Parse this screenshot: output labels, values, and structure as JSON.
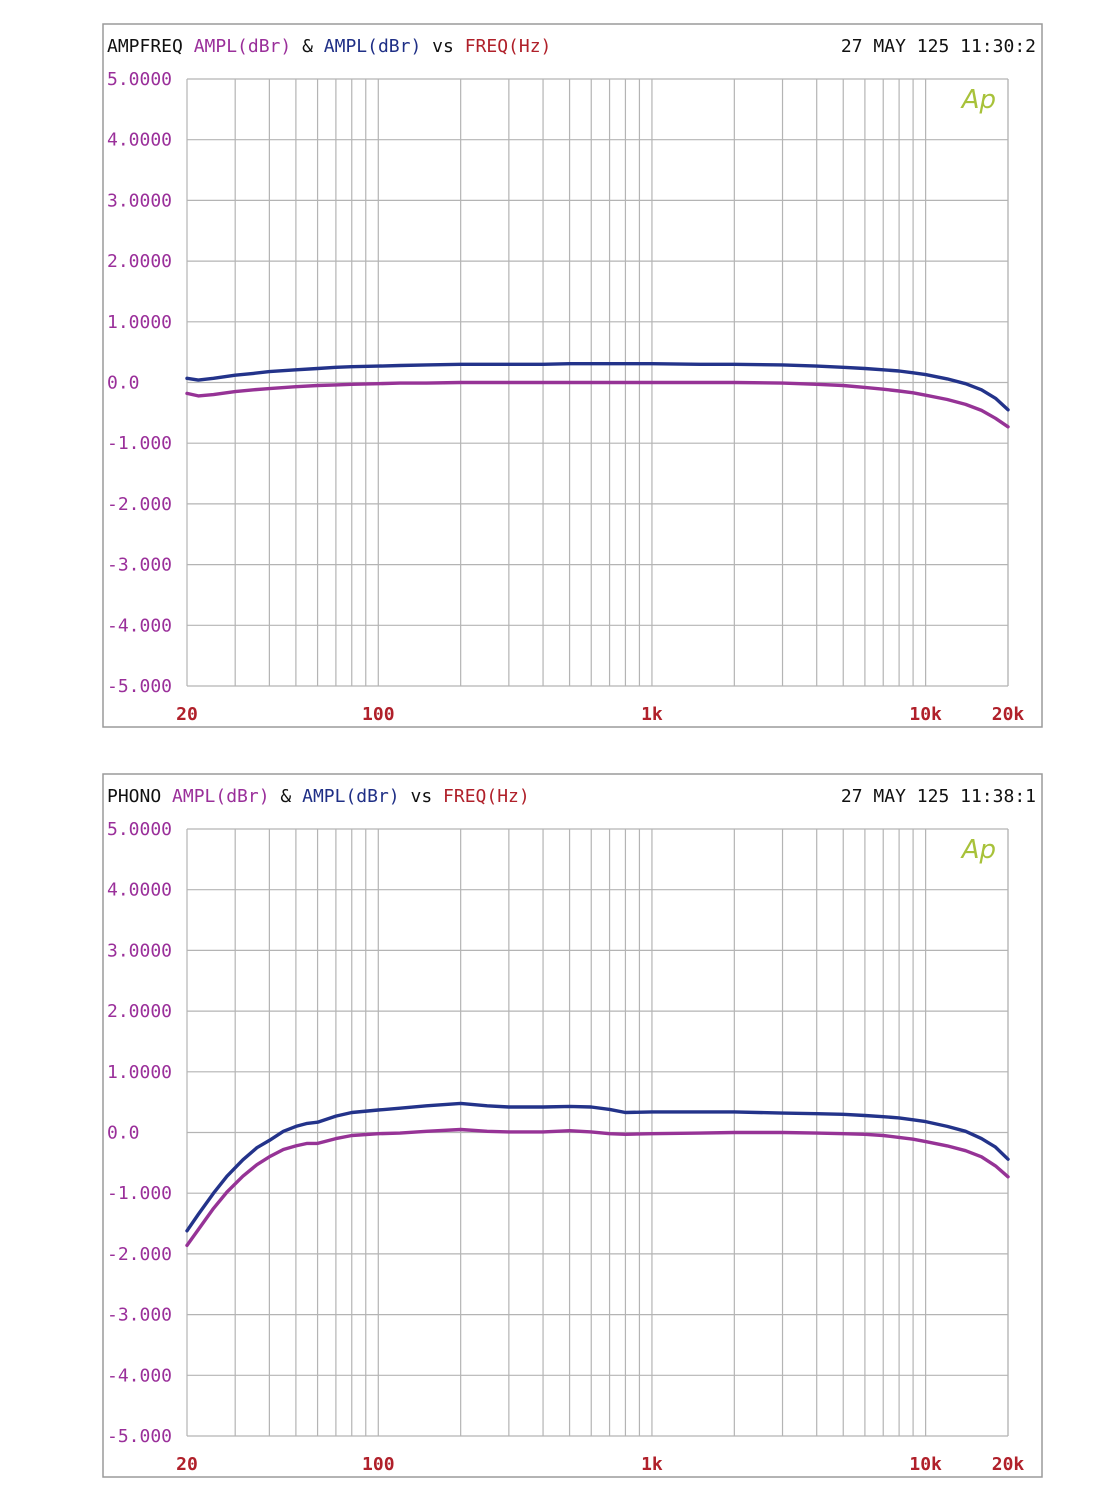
{
  "colors": {
    "black": "#111111",
    "purple": "#9a2f9a",
    "navy": "#1f2f86",
    "red": "#b0202a",
    "grid": "#b4b4b4",
    "logo": "#a8c23a",
    "series1": "#23338a",
    "series2": "#963396"
  },
  "chart_data": [
    {
      "type": "line",
      "title_parts": [
        "AMPFREQ",
        "AMPL(dBr)",
        "&",
        "AMPL(dBr)",
        "vs",
        "FREQ(Hz)"
      ],
      "timestamp": "27 MAY 125 11:30:2",
      "logo": "Ap",
      "x_scale": "log",
      "xlim": [
        20,
        20000
      ],
      "ylim": [
        -5,
        5
      ],
      "grid": true,
      "y_ticks": [
        {
          "v": 5,
          "label": "5.0000"
        },
        {
          "v": 4,
          "label": "4.0000"
        },
        {
          "v": 3,
          "label": "3.0000"
        },
        {
          "v": 2,
          "label": "2.0000"
        },
        {
          "v": 1,
          "label": "1.0000"
        },
        {
          "v": 0,
          "label": "0.0"
        },
        {
          "v": -1,
          "label": "-1.000"
        },
        {
          "v": -2,
          "label": "-2.000"
        },
        {
          "v": -3,
          "label": "-3.000"
        },
        {
          "v": -4,
          "label": "-4.000"
        },
        {
          "v": -5,
          "label": "-5.000"
        }
      ],
      "x_ticks": [
        {
          "v": 20,
          "label": "20"
        },
        {
          "v": 100,
          "label": "100"
        },
        {
          "v": 1000,
          "label": "1k"
        },
        {
          "v": 10000,
          "label": "10k"
        },
        {
          "v": 20000,
          "label": "20k"
        }
      ],
      "series": [
        {
          "x": [
            20,
            22,
            25,
            30,
            35,
            40,
            50,
            60,
            70,
            80,
            100,
            120,
            150,
            200,
            300,
            400,
            500,
            700,
            1000,
            1500,
            2000,
            3000,
            4000,
            5000,
            6000,
            7000,
            8000,
            9000,
            10000,
            12000,
            14000,
            16000,
            18000,
            20000
          ],
          "y": [
            0.07,
            0.04,
            0.07,
            0.12,
            0.15,
            0.18,
            0.21,
            0.23,
            0.25,
            0.26,
            0.27,
            0.28,
            0.29,
            0.3,
            0.3,
            0.3,
            0.31,
            0.31,
            0.31,
            0.3,
            0.3,
            0.29,
            0.27,
            0.25,
            0.23,
            0.21,
            0.19,
            0.16,
            0.13,
            0.06,
            -0.02,
            -0.12,
            -0.26,
            -0.45
          ]
        },
        {
          "x": [
            20,
            22,
            25,
            30,
            35,
            40,
            50,
            60,
            70,
            80,
            100,
            120,
            150,
            200,
            300,
            500,
            700,
            1000,
            1500,
            2000,
            3000,
            4000,
            5000,
            6000,
            7000,
            8000,
            9000,
            10000,
            12000,
            14000,
            16000,
            18000,
            20000
          ],
          "y": [
            -0.18,
            -0.22,
            -0.2,
            -0.15,
            -0.12,
            -0.1,
            -0.07,
            -0.05,
            -0.04,
            -0.03,
            -0.02,
            -0.01,
            -0.01,
            0.0,
            0.0,
            0.0,
            0.0,
            0.0,
            0.0,
            0.0,
            -0.01,
            -0.03,
            -0.05,
            -0.08,
            -0.11,
            -0.14,
            -0.17,
            -0.21,
            -0.28,
            -0.36,
            -0.46,
            -0.59,
            -0.73
          ]
        }
      ]
    },
    {
      "type": "line",
      "title_parts": [
        "PHONO",
        "AMPL(dBr)",
        "&",
        "AMPL(dBr)",
        "vs",
        "FREQ(Hz)"
      ],
      "timestamp": "27 MAY 125 11:38:1",
      "logo": "Ap",
      "x_scale": "log",
      "xlim": [
        20,
        20000
      ],
      "ylim": [
        -5,
        5
      ],
      "grid": true,
      "y_ticks": [
        {
          "v": 5,
          "label": "5.0000"
        },
        {
          "v": 4,
          "label": "4.0000"
        },
        {
          "v": 3,
          "label": "3.0000"
        },
        {
          "v": 2,
          "label": "2.0000"
        },
        {
          "v": 1,
          "label": "1.0000"
        },
        {
          "v": 0,
          "label": "0.0"
        },
        {
          "v": -1,
          "label": "-1.000"
        },
        {
          "v": -2,
          "label": "-2.000"
        },
        {
          "v": -3,
          "label": "-3.000"
        },
        {
          "v": -4,
          "label": "-4.000"
        },
        {
          "v": -5,
          "label": "-5.000"
        }
      ],
      "x_ticks": [
        {
          "v": 20,
          "label": "20"
        },
        {
          "v": 100,
          "label": "100"
        },
        {
          "v": 1000,
          "label": "1k"
        },
        {
          "v": 10000,
          "label": "10k"
        },
        {
          "v": 20000,
          "label": "20k"
        }
      ],
      "series": [
        {
          "x": [
            20,
            22,
            25,
            28,
            32,
            36,
            40,
            45,
            50,
            55,
            60,
            70,
            80,
            100,
            120,
            150,
            200,
            250,
            300,
            400,
            500,
            600,
            700,
            800,
            1000,
            1500,
            2000,
            3000,
            4000,
            5000,
            6000,
            7000,
            8000,
            9000,
            10000,
            12000,
            14000,
            16000,
            18000,
            20000
          ],
          "y": [
            -1.62,
            -1.35,
            -1.0,
            -0.72,
            -0.45,
            -0.25,
            -0.13,
            0.02,
            0.1,
            0.15,
            0.17,
            0.27,
            0.33,
            0.37,
            0.4,
            0.44,
            0.48,
            0.44,
            0.42,
            0.42,
            0.43,
            0.42,
            0.38,
            0.33,
            0.34,
            0.34,
            0.34,
            0.32,
            0.31,
            0.3,
            0.28,
            0.26,
            0.24,
            0.21,
            0.18,
            0.1,
            0.02,
            -0.1,
            -0.24,
            -0.44
          ]
        },
        {
          "x": [
            20,
            22,
            25,
            28,
            32,
            36,
            40,
            45,
            50,
            55,
            60,
            70,
            80,
            100,
            120,
            150,
            200,
            250,
            300,
            400,
            500,
            600,
            700,
            800,
            1000,
            1500,
            2000,
            3000,
            4000,
            5000,
            6000,
            7000,
            8000,
            9000,
            10000,
            12000,
            14000,
            16000,
            18000,
            20000
          ],
          "y": [
            -1.86,
            -1.6,
            -1.25,
            -0.98,
            -0.72,
            -0.53,
            -0.4,
            -0.28,
            -0.22,
            -0.18,
            -0.18,
            -0.1,
            -0.05,
            -0.02,
            -0.01,
            0.02,
            0.05,
            0.02,
            0.01,
            0.01,
            0.03,
            0.01,
            -0.02,
            -0.03,
            -0.02,
            -0.01,
            0.0,
            0.0,
            -0.01,
            -0.02,
            -0.03,
            -0.05,
            -0.08,
            -0.11,
            -0.15,
            -0.22,
            -0.3,
            -0.4,
            -0.55,
            -0.73
          ]
        }
      ]
    }
  ]
}
